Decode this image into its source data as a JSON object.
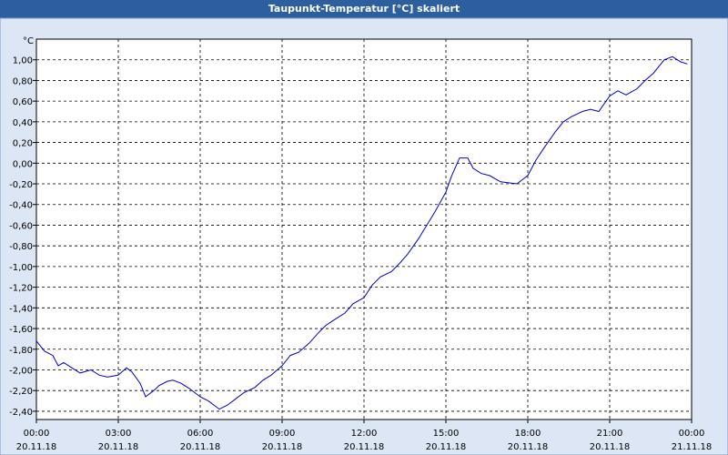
{
  "window": {
    "title": "Taupunkt-Temperatur [°C] skaliert"
  },
  "chart_data": {
    "type": "line",
    "title": "Taupunkt-Temperatur [°C] skaliert",
    "ylabel": "°C",
    "xlabel": "",
    "ylim": [
      -2.48,
      1.2
    ],
    "xlim_hours": [
      0,
      24
    ],
    "grid": true,
    "y_ticks": [
      "1,00",
      "0,80",
      "0,60",
      "0,40",
      "0,20",
      "0,00",
      "-0,20",
      "-0,40",
      "-0,60",
      "-0,80",
      "-1,00",
      "-1,20",
      "-1,40",
      "-1,60",
      "-1,80",
      "-2,00",
      "-2,20",
      "-2,40"
    ],
    "x_ticks": [
      {
        "time": "00:00",
        "date": "20.11.18"
      },
      {
        "time": "03:00",
        "date": "20.11.18"
      },
      {
        "time": "06:00",
        "date": "20.11.18"
      },
      {
        "time": "09:00",
        "date": "20.11.18"
      },
      {
        "time": "12:00",
        "date": "20.11.18"
      },
      {
        "time": "15:00",
        "date": "20.11.18"
      },
      {
        "time": "18:00",
        "date": "20.11.18"
      },
      {
        "time": "21:00",
        "date": "20.11.18"
      },
      {
        "time": "00:00",
        "date": "21.11.18"
      }
    ],
    "series": [
      {
        "color": "#0000cc",
        "x_hours": [
          0,
          0.3,
          0.6,
          0.8,
          1.0,
          1.3,
          1.6,
          2.0,
          2.3,
          2.6,
          3.0,
          3.3,
          3.5,
          3.8,
          4.0,
          4.3,
          4.5,
          4.8,
          5.0,
          5.3,
          5.6,
          6.0,
          6.3,
          6.7,
          7.0,
          7.3,
          7.6,
          8.0,
          8.3,
          8.6,
          9.0,
          9.3,
          9.6,
          10.0,
          10.3,
          10.6,
          11.0,
          11.3,
          11.6,
          12.0,
          12.3,
          12.6,
          13.0,
          13.3,
          13.6,
          14.0,
          14.3,
          14.6,
          15.0,
          15.2,
          15.5,
          15.8,
          16.0,
          16.3,
          16.6,
          17.0,
          17.3,
          17.6,
          18.0,
          18.3,
          18.6,
          19.0,
          19.3,
          19.6,
          20.0,
          20.3,
          20.6,
          21.0,
          21.3,
          21.6,
          22.0,
          22.3,
          22.6,
          23.0,
          23.3,
          23.6,
          23.85
        ],
        "values": [
          -1.72,
          -1.82,
          -1.86,
          -1.96,
          -1.93,
          -1.98,
          -2.03,
          -2.0,
          -2.05,
          -2.07,
          -2.05,
          -1.98,
          -2.02,
          -2.13,
          -2.26,
          -2.2,
          -2.15,
          -2.11,
          -2.1,
          -2.13,
          -2.18,
          -2.26,
          -2.3,
          -2.38,
          -2.34,
          -2.28,
          -2.22,
          -2.17,
          -2.1,
          -2.05,
          -1.96,
          -1.86,
          -1.83,
          -1.74,
          -1.65,
          -1.57,
          -1.5,
          -1.45,
          -1.36,
          -1.3,
          -1.18,
          -1.1,
          -1.05,
          -0.97,
          -0.88,
          -0.73,
          -0.6,
          -0.47,
          -0.28,
          -0.13,
          0.05,
          0.05,
          -0.05,
          -0.1,
          -0.12,
          -0.18,
          -0.19,
          -0.2,
          -0.12,
          0.03,
          0.15,
          0.3,
          0.4,
          0.45,
          0.5,
          0.52,
          0.5,
          0.65,
          0.7,
          0.66,
          0.72,
          0.8,
          0.87,
          1.0,
          1.03,
          0.98,
          0.96
        ]
      }
    ]
  }
}
